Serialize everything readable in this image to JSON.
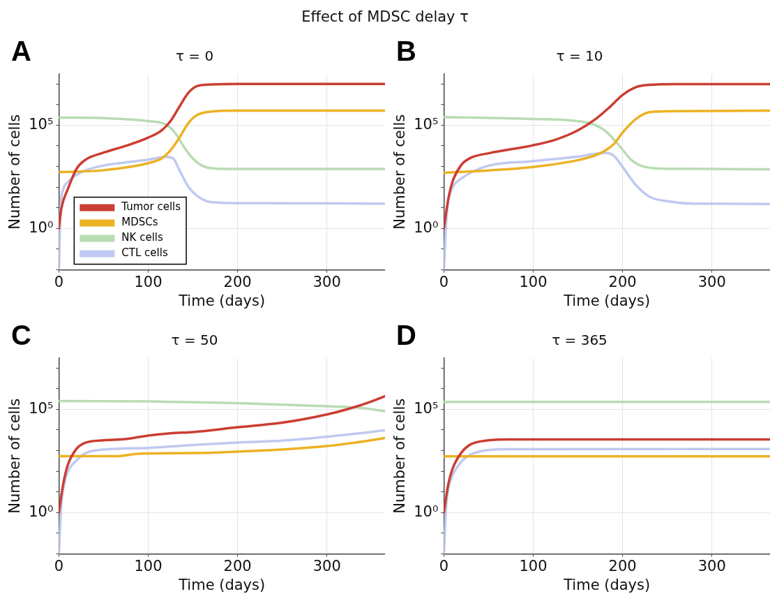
{
  "chart_data": [
    {
      "type": "other",
      "title": "Effect of MDSC delay τ"
    },
    {
      "type": "line",
      "title": "τ = 0",
      "annotations": [
        "A"
      ],
      "xlabel": "Time (days)",
      "ylabel": "Number of cells",
      "log": "y",
      "xlim": [
        0,
        365
      ],
      "xticks": [
        0,
        100,
        200,
        300
      ],
      "ylim": [
        0.01,
        30000000
      ],
      "yticks": [
        {
          "value": 0.01,
          "label": null
        },
        {
          "value": 0.1,
          "label": null
        },
        {
          "value": 1,
          "label": "10⁰"
        },
        {
          "value": 10,
          "label": null
        },
        {
          "value": 100,
          "label": null
        },
        {
          "value": 1000,
          "label": null
        },
        {
          "value": 10000,
          "label": null
        },
        {
          "value": 100000,
          "label": "10⁵"
        },
        {
          "value": 1000000,
          "label": null
        },
        {
          "value": 10000000,
          "label": null
        }
      ],
      "grid": true,
      "legend": "bottom left",
      "series": [
        {
          "name": "Tumor cells",
          "color": "#cc3d33",
          "x": [
            0,
            3,
            10,
            20,
            30,
            50,
            75,
            100,
            115,
            125,
            135,
            145,
            155,
            170,
            200,
            365
          ],
          "values": [
            1,
            10,
            79,
            794,
            2140,
            4680,
            10000,
            25100,
            56200,
            158000,
            794000,
            3720000,
            7940000,
            9330000,
            10000000,
            10000000
          ]
        },
        {
          "name": "MDSCs",
          "color": "#ecb224",
          "x": [
            0,
            50,
            100,
            115,
            125,
            135,
            145,
            155,
            170,
            200,
            365
          ],
          "values": [
            537,
            661,
            1450,
            2450,
            6030,
            25100,
            126000,
            316000,
            457000,
            501000,
            501000
          ]
        },
        {
          "name": "NK cells",
          "color": "#b9dcb2",
          "x": [
            0,
            50,
            100,
            120,
            130,
            140,
            150,
            160,
            175,
            200,
            365
          ],
          "values": [
            234000,
            219000,
            158000,
            107000,
            43700,
            8910,
            2450,
            1120,
            794,
            759,
            759
          ]
        },
        {
          "name": "CTL cells",
          "color": "#c0c9f0",
          "x": [
            0,
            2,
            5,
            10,
            20,
            30,
            50,
            75,
            100,
            120,
            128,
            135,
            145,
            155,
            170,
            200,
            365
          ],
          "values": [
            0.01,
            10,
            79,
            178,
            398,
            661,
            1120,
            1580,
            2140,
            2950,
            2450,
            661,
            105,
            37,
            19,
            17,
            16
          ]
        }
      ]
    },
    {
      "type": "line",
      "title": "τ = 10",
      "annotations": [
        "B"
      ],
      "xlabel": "Time (days)",
      "ylabel": "Number of cells",
      "log": "y",
      "xlim": [
        0,
        365
      ],
      "xticks": [
        0,
        100,
        200,
        300
      ],
      "ylim": [
        0.01,
        30000000
      ],
      "yticks": [
        {
          "value": 0.01,
          "label": null
        },
        {
          "value": 0.1,
          "label": null
        },
        {
          "value": 1,
          "label": "10⁰"
        },
        {
          "value": 10,
          "label": null
        },
        {
          "value": 100,
          "label": null
        },
        {
          "value": 1000,
          "label": null
        },
        {
          "value": 10000,
          "label": null
        },
        {
          "value": 100000,
          "label": "10⁵"
        },
        {
          "value": 1000000,
          "label": null
        },
        {
          "value": 10000000,
          "label": null
        }
      ],
      "grid": true,
      "series": [
        {
          "color": "#cc3d33",
          "x": [
            0,
            5,
            10,
            20,
            30,
            50,
            100,
            125,
            150,
            170,
            185,
            200,
            215,
            230,
            260,
            365
          ],
          "values": [
            1,
            27,
            200,
            1260,
            2630,
            4370,
            10700,
            20000,
            56200,
            200000,
            708000,
            2880000,
            6920000,
            8910000,
            9770000,
            9770000
          ]
        },
        {
          "color": "#ecb224",
          "x": [
            0,
            50,
            100,
            150,
            175,
            190,
            200,
            215,
            230,
            260,
            365
          ],
          "values": [
            500,
            646,
            955,
            2040,
            4370,
            12000,
            43700,
            200000,
            427000,
            479000,
            501000
          ]
        },
        {
          "color": "#b9dcb2",
          "x": [
            0,
            100,
            160,
            180,
            195,
            210,
            225,
            250,
            365
          ],
          "values": [
            245000,
            200000,
            135000,
            56200,
            12000,
            2040,
            955,
            776,
            741
          ]
        },
        {
          "color": "#c0c9f0",
          "x": [
            0,
            3,
            5,
            10,
            20,
            30,
            50,
            100,
            150,
            180,
            190,
            200,
            215,
            230,
            250,
            280,
            365
          ],
          "values": [
            0.01,
            3.5,
            21,
            100,
            269,
            500,
            1100,
            1820,
            3020,
            4570,
            3390,
            955,
            126,
            35,
            21,
            16,
            15.5
          ]
        }
      ]
    },
    {
      "type": "line",
      "title": "τ = 50",
      "annotations": [
        "C"
      ],
      "xlabel": "Time (days)",
      "ylabel": "Number of cells",
      "log": "y",
      "xlim": [
        0,
        365
      ],
      "xticks": [
        0,
        100,
        200,
        300
      ],
      "ylim": [
        0.01,
        30000000
      ],
      "yticks": [
        {
          "value": 0.01,
          "label": null
        },
        {
          "value": 0.1,
          "label": null
        },
        {
          "value": 1,
          "label": "10⁰"
        },
        {
          "value": 10,
          "label": null
        },
        {
          "value": 100,
          "label": null
        },
        {
          "value": 1000,
          "label": null
        },
        {
          "value": 10000,
          "label": null
        },
        {
          "value": 100000,
          "label": "10⁵"
        },
        {
          "value": 1000000,
          "label": null
        },
        {
          "value": 10000000,
          "label": null
        }
      ],
      "grid": true,
      "series": [
        {
          "color": "#cc3d33",
          "x": [
            0,
            5,
            10,
            20,
            30,
            50,
            75,
            100,
            125,
            150,
            200,
            250,
            300,
            325,
            350,
            365
          ],
          "values": [
            1,
            25,
            200,
            1260,
            2450,
            3160,
            3630,
            5370,
            6920,
            7940,
            13500,
            22400,
            56200,
            107000,
            240000,
            427000
          ]
        },
        {
          "color": "#ecb224",
          "x": [
            0,
            65,
            90,
            150,
            200,
            250,
            300,
            340,
            365
          ],
          "values": [
            537,
            537,
            708,
            759,
            891,
            1120,
            1660,
            2750,
            4070
          ]
        },
        {
          "color": "#b9dcb2",
          "x": [
            0,
            100,
            200,
            300,
            340,
            365
          ],
          "values": [
            251000,
            240000,
            200000,
            141000,
            115000,
            79400
          ]
        },
        {
          "color": "#c0c9f0",
          "x": [
            0,
            3,
            5,
            10,
            20,
            30,
            50,
            100,
            150,
            200,
            250,
            300,
            365
          ],
          "values": [
            0.01,
            3.1,
            15,
            93,
            339,
            759,
            1120,
            1350,
            1860,
            2450,
            3020,
            4680,
            9550
          ]
        }
      ]
    },
    {
      "type": "line",
      "title": "τ = 365",
      "annotations": [
        "D"
      ],
      "xlabel": "Time (days)",
      "ylabel": "Number of cells",
      "log": "y",
      "xlim": [
        0,
        365
      ],
      "xticks": [
        0,
        100,
        200,
        300
      ],
      "ylim": [
        0.01,
        30000000
      ],
      "yticks": [
        {
          "value": 0.01,
          "label": null
        },
        {
          "value": 0.1,
          "label": null
        },
        {
          "value": 1,
          "label": "10⁰"
        },
        {
          "value": 10,
          "label": null
        },
        {
          "value": 100,
          "label": null
        },
        {
          "value": 1000,
          "label": null
        },
        {
          "value": 10000,
          "label": null
        },
        {
          "value": 100000,
          "label": "10⁵"
        },
        {
          "value": 1000000,
          "label": null
        },
        {
          "value": 10000000,
          "label": null
        }
      ],
      "grid": true,
      "series": [
        {
          "color": "#cc3d33",
          "x": [
            0,
            5,
            10,
            20,
            30,
            50,
            75,
            365
          ],
          "values": [
            1,
            24,
            141,
            832,
            2000,
            3160,
            3470,
            3470
          ]
        },
        {
          "color": "#ecb224",
          "x": [
            0,
            365
          ],
          "values": [
            525,
            525
          ]
        },
        {
          "color": "#b9dcb2",
          "x": [
            0,
            365
          ],
          "values": [
            229000,
            229000
          ]
        },
        {
          "color": "#c0c9f0",
          "x": [
            0,
            3,
            5,
            10,
            20,
            30,
            50,
            75,
            365
          ],
          "values": [
            0.01,
            3.2,
            14,
            66,
            302,
            646,
            1070,
            1170,
            1200
          ]
        }
      ]
    }
  ]
}
